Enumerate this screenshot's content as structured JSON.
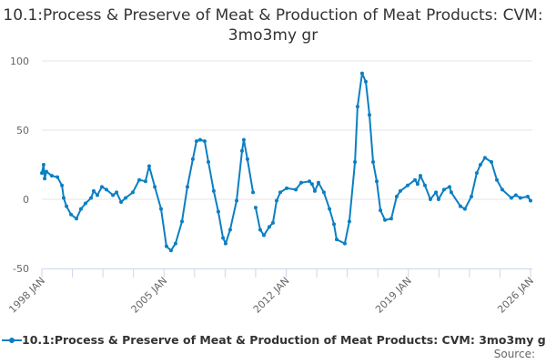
{
  "chart_data": {
    "type": "line",
    "title": "10.1:Process & Preserve of Meat & Production of Meat Products: CVM: 3mo3my gr",
    "xlabel": "",
    "ylabel": "",
    "xlim": [
      1998.0,
      2026.0
    ],
    "ylim": [
      -50,
      100
    ],
    "yticks": [
      100,
      50,
      0,
      -50
    ],
    "xtick_labels": [
      "1998 JAN",
      "2005 JAN",
      "2012 JAN",
      "2019 JAN",
      "2026 JAN"
    ],
    "xtick_values": [
      1998,
      2005,
      2012,
      2019,
      2026
    ],
    "grid": true,
    "legend_position": "bottom",
    "color": "#0a7fc2",
    "series": [
      {
        "name": "10.1:Process & Preserve of Meat & Production of Meat Products: CVM: 3mo3my gr",
        "points": [
          [
            1998.0,
            19
          ],
          [
            1998.1,
            25
          ],
          [
            1998.16,
            15
          ],
          [
            1998.26,
            20
          ],
          [
            1998.57,
            17
          ],
          [
            1998.89,
            16
          ],
          [
            1999.15,
            10
          ],
          [
            1999.25,
            1
          ],
          [
            1999.41,
            -5
          ],
          [
            1999.67,
            -11
          ],
          [
            1999.98,
            -14
          ],
          [
            2000.24,
            -7
          ],
          [
            2000.5,
            -3
          ],
          [
            2000.82,
            1
          ],
          [
            2000.97,
            6
          ],
          [
            2001.18,
            3
          ],
          [
            2001.44,
            9
          ],
          [
            2001.7,
            7
          ],
          [
            2002.07,
            3
          ],
          [
            2002.28,
            5
          ],
          [
            2002.54,
            -2
          ],
          [
            2002.8,
            1
          ],
          [
            2003.21,
            5
          ],
          [
            2003.58,
            14
          ],
          [
            2003.94,
            13
          ],
          [
            2004.15,
            24
          ],
          [
            2004.47,
            9
          ],
          [
            2004.83,
            -7
          ],
          [
            2005.14,
            -34
          ],
          [
            2005.4,
            -37
          ],
          [
            2005.66,
            -32
          ],
          [
            2006.03,
            -16
          ],
          [
            2006.34,
            9
          ],
          [
            2006.65,
            29
          ],
          [
            2006.86,
            42
          ],
          [
            2007.07,
            43
          ],
          [
            2007.33,
            42
          ],
          [
            2007.54,
            27
          ],
          [
            2007.85,
            6
          ],
          [
            2008.11,
            -9
          ],
          [
            2008.38,
            -28
          ],
          [
            2008.53,
            -32
          ],
          [
            2008.79,
            -22
          ],
          [
            2009.16,
            -1
          ],
          [
            2009.47,
            35
          ],
          [
            2009.57,
            43
          ],
          [
            2009.78,
            29
          ],
          [
            2010.1,
            5
          ],
          [
            2010.1,
            null
          ],
          [
            2010.25,
            -6
          ],
          [
            2010.51,
            -22
          ],
          [
            2010.72,
            -26
          ],
          [
            2011.03,
            -20
          ],
          [
            2011.24,
            -17
          ],
          [
            2011.45,
            -1
          ],
          [
            2011.66,
            5
          ],
          [
            2012.03,
            8
          ],
          [
            2012.55,
            7
          ],
          [
            2012.86,
            12
          ],
          [
            2013.33,
            13
          ],
          [
            2013.48,
            11
          ],
          [
            2013.64,
            6
          ],
          [
            2013.85,
            12
          ],
          [
            2014.16,
            5
          ],
          [
            2014.48,
            -7
          ],
          [
            2014.74,
            -18
          ],
          [
            2014.89,
            -29
          ],
          [
            2015.36,
            -32
          ],
          [
            2015.62,
            -16
          ],
          [
            2015.94,
            27
          ],
          [
            2016.09,
            67
          ],
          [
            2016.35,
            91
          ],
          [
            2016.56,
            85
          ],
          [
            2016.77,
            61
          ],
          [
            2016.98,
            27
          ],
          [
            2017.19,
            13
          ],
          [
            2017.4,
            -8
          ],
          [
            2017.66,
            -15
          ],
          [
            2018.02,
            -14
          ],
          [
            2018.33,
            2
          ],
          [
            2018.54,
            6
          ],
          [
            2018.96,
            10
          ],
          [
            2019.38,
            14
          ],
          [
            2019.53,
            11
          ],
          [
            2019.69,
            17
          ],
          [
            2019.95,
            10
          ],
          [
            2020.26,
            0
          ],
          [
            2020.58,
            5
          ],
          [
            2020.73,
            0
          ],
          [
            2021.04,
            7
          ],
          [
            2021.36,
            9
          ],
          [
            2021.46,
            5
          ],
          [
            2021.98,
            -5
          ],
          [
            2022.24,
            -7
          ],
          [
            2022.61,
            2
          ],
          [
            2022.92,
            19
          ],
          [
            2023.13,
            25
          ],
          [
            2023.39,
            30
          ],
          [
            2023.76,
            27
          ],
          [
            2024.07,
            14
          ],
          [
            2024.38,
            7
          ],
          [
            2024.9,
            1
          ],
          [
            2025.16,
            3
          ],
          [
            2025.42,
            1
          ],
          [
            2025.84,
            2
          ],
          [
            2026.0,
            -1
          ]
        ]
      }
    ],
    "source_label": "Source:"
  }
}
